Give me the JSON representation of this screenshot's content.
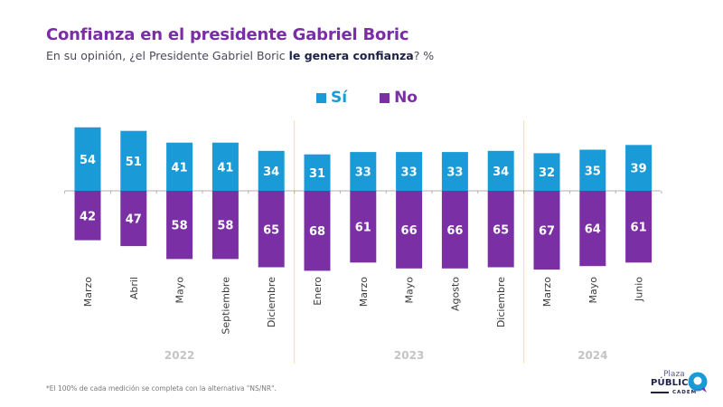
{
  "header": {
    "title": "Confianza en el presidente Gabriel Boric",
    "subtitle_prefix": "En su opinión, ¿el Presidente Gabriel Boric ",
    "subtitle_bold": "le genera confianza",
    "subtitle_suffix": "? %"
  },
  "footnote": "*El 100% de cada medición se completa con la alternativa \"NS/NR\".",
  "logo": {
    "line1": "Plaza",
    "line2": "PÚBLICA",
    "line3": "CADEM"
  },
  "colors": {
    "si": "#1a9ad6",
    "no": "#7b2fa4",
    "title": "#7a2ea6",
    "separator": "#f2e7a6",
    "axis": "#b0b0b0",
    "year": "#c4c4c4"
  },
  "chart_data": {
    "type": "bar",
    "title": "Confianza en el presidente Gabriel Boric",
    "subtitle": "En su opinión, ¿el Presidente Gabriel Boric le genera confianza? %",
    "layout": "diverging",
    "categories": [
      "Marzo",
      "Abril",
      "Mayo",
      "Septiembre",
      "Diciembre",
      "Enero",
      "Marzo",
      "Mayo",
      "Agosto",
      "Diciembre",
      "Marzo",
      "Mayo",
      "Junio"
    ],
    "year_groups": [
      {
        "label": "2022",
        "count": 5
      },
      {
        "label": "2023",
        "count": 5
      },
      {
        "label": "2024",
        "count": 3
      }
    ],
    "series": [
      {
        "name": "Sí",
        "direction": "up",
        "values": [
          54,
          51,
          41,
          41,
          34,
          31,
          33,
          33,
          33,
          34,
          32,
          35,
          39
        ]
      },
      {
        "name": "No",
        "direction": "down",
        "values": [
          42,
          47,
          58,
          58,
          65,
          68,
          61,
          66,
          66,
          65,
          67,
          64,
          61
        ]
      }
    ],
    "legend": [
      "Sí",
      "No"
    ],
    "legend_position": "top-center",
    "xlabel": "",
    "ylabel": "%",
    "ylim": [
      -70,
      60
    ],
    "grid": false
  }
}
